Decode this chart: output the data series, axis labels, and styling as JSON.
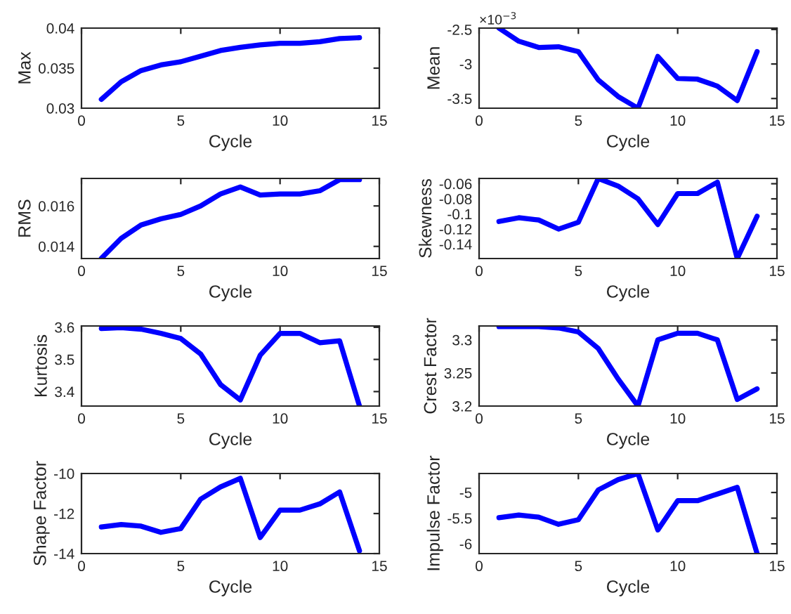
{
  "chart_data": [
    {
      "type": "line",
      "xlabel": "Cycle",
      "ylabel": "Max",
      "x": [
        1,
        2,
        3,
        4,
        5,
        6,
        7,
        8,
        9,
        10,
        11,
        12,
        13,
        14
      ],
      "series": [
        {
          "color": "#0000ff",
          "values": [
            0.0311,
            0.0333,
            0.0347,
            0.0354,
            0.0358,
            0.0365,
            0.0372,
            0.0376,
            0.0379,
            0.0381,
            0.0381,
            0.0383,
            0.0387,
            0.0388
          ]
        }
      ],
      "xlim": [
        0,
        15
      ],
      "xticks": [
        0,
        5,
        10,
        15
      ],
      "ylim": [
        0.03,
        0.04
      ],
      "yticks": [
        0.03,
        0.035,
        0.04
      ],
      "grid": false,
      "line_style": "solid",
      "marker": "none"
    },
    {
      "type": "line",
      "xlabel": "Cycle",
      "ylabel": "Mean",
      "annotations": [
        "×10$^{−3}$"
      ],
      "x": [
        1,
        2,
        3,
        4,
        5,
        6,
        7,
        8,
        9,
        10,
        11,
        12,
        13,
        14
      ],
      "series": [
        {
          "color": "#0000ff",
          "values": [
            -2.48,
            -2.67,
            -2.76,
            -2.75,
            -2.82,
            -3.23,
            -3.47,
            -3.64,
            -2.89,
            -3.21,
            -3.22,
            -3.32,
            -3.53,
            -2.82
          ]
        }
      ],
      "xlim": [
        0,
        15
      ],
      "xticks": [
        0,
        5,
        10,
        15
      ],
      "ylim": [
        -3.64,
        -2.48
      ],
      "yticks": [
        -3.5,
        -3,
        -2.5
      ],
      "grid": false,
      "line_style": "solid",
      "marker": "none"
    },
    {
      "type": "line",
      "xlabel": "Cycle",
      "ylabel": "RMS",
      "x": [
        1,
        2,
        3,
        4,
        5,
        6,
        7,
        8,
        9,
        10,
        11,
        12,
        13,
        14
      ],
      "series": [
        {
          "color": "#0000ff",
          "values": [
            0.01341,
            0.0144,
            0.01506,
            0.01536,
            0.01558,
            0.016,
            0.01659,
            0.01694,
            0.01654,
            0.01659,
            0.01659,
            0.01675,
            0.0173,
            0.0173
          ]
        }
      ],
      "xlim": [
        0,
        15
      ],
      "xticks": [
        0,
        5,
        10,
        15
      ],
      "ylim": [
        0.0134,
        0.01736
      ],
      "yticks": [
        0.014,
        0.016
      ],
      "grid": false,
      "line_style": "solid",
      "marker": "none"
    },
    {
      "type": "line",
      "xlabel": "Cycle",
      "ylabel": "Skewness",
      "x": [
        1,
        2,
        3,
        4,
        5,
        6,
        7,
        8,
        9,
        10,
        11,
        12,
        13,
        14
      ],
      "series": [
        {
          "color": "#0000ff",
          "values": [
            -0.11,
            -0.105,
            -0.108,
            -0.12,
            -0.111,
            -0.053,
            -0.063,
            -0.08,
            -0.114,
            -0.073,
            -0.073,
            -0.058,
            -0.159,
            -0.103
          ]
        }
      ],
      "xlim": [
        0,
        15
      ],
      "xticks": [
        0,
        5,
        10,
        15
      ],
      "ylim": [
        -0.159,
        -0.053
      ],
      "yticks": [
        -0.14,
        -0.12,
        -0.1,
        -0.08,
        -0.06
      ],
      "grid": false,
      "line_style": "solid",
      "marker": "none"
    },
    {
      "type": "line",
      "xlabel": "Cycle",
      "ylabel": "Kurtosis",
      "x": [
        1,
        2,
        3,
        4,
        5,
        6,
        7,
        8,
        9,
        10,
        11,
        12,
        13,
        14
      ],
      "series": [
        {
          "color": "#0000ff",
          "values": [
            3.596,
            3.599,
            3.594,
            3.581,
            3.565,
            3.517,
            3.422,
            3.374,
            3.513,
            3.581,
            3.581,
            3.552,
            3.558,
            3.355
          ]
        }
      ],
      "xlim": [
        0,
        15
      ],
      "xticks": [
        0,
        5,
        10,
        15
      ],
      "ylim": [
        3.355,
        3.604
      ],
      "yticks": [
        3.4,
        3.5,
        3.6
      ],
      "grid": false,
      "line_style": "solid",
      "marker": "none"
    },
    {
      "type": "line",
      "xlabel": "Cycle",
      "ylabel": "Crest Factor",
      "x": [
        1,
        2,
        3,
        4,
        5,
        6,
        7,
        8,
        9,
        10,
        11,
        12,
        13,
        14
      ],
      "series": [
        {
          "color": "#0000ff",
          "values": [
            3.32,
            3.32,
            3.32,
            3.318,
            3.312,
            3.287,
            3.241,
            3.2,
            3.3,
            3.31,
            3.31,
            3.3,
            3.21,
            3.226
          ]
        }
      ],
      "xlim": [
        0,
        15
      ],
      "xticks": [
        0,
        5,
        10,
        15
      ],
      "ylim": [
        3.2,
        3.321
      ],
      "yticks": [
        3.2,
        3.25,
        3.3
      ],
      "grid": false,
      "line_style": "solid",
      "marker": "none"
    },
    {
      "type": "line",
      "xlabel": "Cycle",
      "ylabel": "Shape Factor",
      "x": [
        1,
        2,
        3,
        4,
        5,
        6,
        7,
        8,
        9,
        10,
        11,
        12,
        13,
        14
      ],
      "series": [
        {
          "color": "#0000ff",
          "values": [
            -12.67,
            -12.55,
            -12.63,
            -12.94,
            -12.75,
            -11.28,
            -10.67,
            -10.24,
            -13.2,
            -11.83,
            -11.83,
            -11.52,
            -10.92,
            -13.86
          ]
        }
      ],
      "xlim": [
        0,
        15
      ],
      "xticks": [
        0,
        5,
        10,
        15
      ],
      "ylim": [
        -14,
        -10
      ],
      "yticks": [
        -14,
        -12,
        -10
      ],
      "grid": false,
      "line_style": "solid",
      "marker": "none"
    },
    {
      "type": "line",
      "xlabel": "Cycle",
      "ylabel": "Impulse Factor",
      "x": [
        1,
        2,
        3,
        4,
        5,
        6,
        7,
        8,
        9,
        10,
        11,
        12,
        13,
        14
      ],
      "series": [
        {
          "color": "#0000ff",
          "values": [
            -5.49,
            -5.44,
            -5.48,
            -5.62,
            -5.53,
            -4.95,
            -4.75,
            -4.63,
            -5.73,
            -5.16,
            -5.16,
            -5.03,
            -4.9,
            -6.19
          ]
        }
      ],
      "xlim": [
        0,
        15
      ],
      "xticks": [
        0,
        5,
        10,
        15
      ],
      "ylim": [
        -6.19,
        -4.63
      ],
      "yticks": [
        -6,
        -5.5,
        -5
      ],
      "grid": false,
      "line_style": "solid",
      "marker": "none"
    }
  ]
}
